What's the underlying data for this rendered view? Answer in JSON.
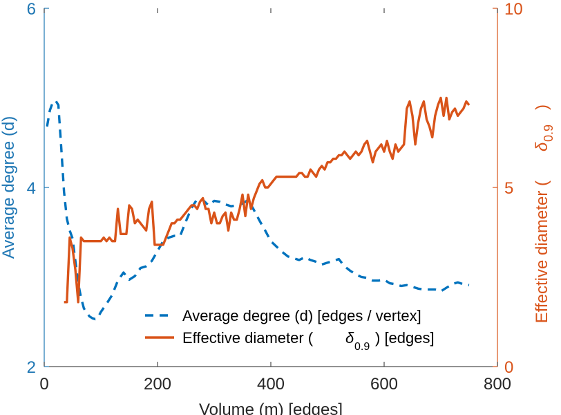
{
  "chart_data": {
    "type": "line",
    "xlabel": "Volume (m) [edges]",
    "x_ticks": [
      0,
      200,
      400,
      600,
      800
    ],
    "xlim": [
      0,
      800
    ],
    "y_left": {
      "label": "Average degree (d)",
      "ticks": [
        2,
        4,
        6
      ],
      "ylim": [
        2,
        6
      ],
      "color": "#1f77b4"
    },
    "y_right": {
      "label_prefix": "Effective diameter (",
      "label_symbol": "δ",
      "label_subscript": "0.9",
      "label_suffix": ")",
      "ticks": [
        0,
        5,
        10
      ],
      "ylim": [
        0,
        10
      ],
      "color": "#d95319"
    },
    "grid": false,
    "legend": {
      "placement": "lower-right",
      "entries": [
        {
          "series": 0,
          "text": "Average degree (d) [edges / vertex]"
        },
        {
          "series": 1,
          "text_prefix": "Effective diameter (",
          "symbol": "δ",
          "subscript": "0.9",
          "text_suffix": ") [edges]"
        }
      ]
    },
    "series": [
      {
        "axis": "left",
        "style": "dashed",
        "color": "#0072bd",
        "x": [
          5,
          10,
          15,
          20,
          25,
          30,
          35,
          40,
          45,
          50,
          55,
          60,
          65,
          70,
          75,
          80,
          85,
          90,
          95,
          100,
          110,
          120,
          130,
          140,
          150,
          160,
          170,
          180,
          190,
          200,
          210,
          220,
          230,
          240,
          250,
          260,
          270,
          280,
          290,
          300,
          310,
          320,
          330,
          340,
          350,
          360,
          370,
          380,
          390,
          400,
          410,
          420,
          430,
          440,
          450,
          460,
          470,
          480,
          490,
          500,
          510,
          520,
          530,
          540,
          550,
          560,
          570,
          580,
          590,
          600,
          610,
          620,
          630,
          640,
          650,
          660,
          670,
          680,
          690,
          700,
          710,
          720,
          730,
          740,
          750
        ],
        "values": [
          4.68,
          4.86,
          4.95,
          4.97,
          4.92,
          4.45,
          3.95,
          3.65,
          3.52,
          3.43,
          3.18,
          2.93,
          2.77,
          2.65,
          2.6,
          2.56,
          2.54,
          2.53,
          2.55,
          2.61,
          2.7,
          2.8,
          2.96,
          3.05,
          2.97,
          3.01,
          3.1,
          3.12,
          3.18,
          3.29,
          3.4,
          3.44,
          3.46,
          3.46,
          3.62,
          3.77,
          3.87,
          3.86,
          3.8,
          3.85,
          3.84,
          3.81,
          3.79,
          3.8,
          3.82,
          3.86,
          3.75,
          3.63,
          3.52,
          3.4,
          3.34,
          3.28,
          3.23,
          3.21,
          3.19,
          3.22,
          3.19,
          3.17,
          3.14,
          3.16,
          3.18,
          3.2,
          3.12,
          3.07,
          3.03,
          3.0,
          2.99,
          2.96,
          2.96,
          2.97,
          2.93,
          2.92,
          2.9,
          2.91,
          2.89,
          2.87,
          2.86,
          2.86,
          2.86,
          2.84,
          2.88,
          2.92,
          2.94,
          2.92,
          2.91
        ]
      },
      {
        "axis": "right",
        "style": "solid",
        "color": "#d95319",
        "x": [
          35,
          40,
          45,
          50,
          55,
          60,
          65,
          70,
          75,
          80,
          85,
          90,
          95,
          100,
          105,
          110,
          115,
          120,
          125,
          130,
          135,
          140,
          145,
          150,
          155,
          160,
          165,
          170,
          175,
          180,
          185,
          190,
          195,
          200,
          205,
          210,
          215,
          220,
          225,
          230,
          235,
          240,
          245,
          250,
          255,
          260,
          265,
          270,
          275,
          280,
          285,
          290,
          295,
          300,
          305,
          310,
          315,
          320,
          325,
          330,
          335,
          340,
          345,
          350,
          355,
          360,
          365,
          370,
          375,
          380,
          385,
          390,
          395,
          400,
          405,
          410,
          415,
          420,
          425,
          430,
          435,
          440,
          445,
          450,
          455,
          460,
          465,
          470,
          475,
          480,
          485,
          490,
          495,
          500,
          505,
          510,
          515,
          520,
          525,
          530,
          535,
          540,
          545,
          550,
          555,
          560,
          565,
          570,
          575,
          580,
          585,
          590,
          595,
          600,
          605,
          610,
          615,
          620,
          625,
          630,
          635,
          640,
          645,
          650,
          655,
          660,
          665,
          670,
          675,
          680,
          685,
          690,
          695,
          700,
          705,
          710,
          715,
          720,
          725,
          730,
          735,
          740,
          745,
          750
        ],
        "values": [
          1.8,
          1.8,
          3.6,
          3.3,
          2.7,
          1.8,
          3.6,
          3.5,
          3.5,
          3.5,
          3.5,
          3.5,
          3.5,
          3.5,
          3.6,
          3.5,
          3.6,
          3.5,
          3.5,
          4.4,
          3.7,
          3.7,
          3.7,
          4.5,
          4.4,
          4.0,
          4.1,
          4.0,
          3.9,
          3.8,
          4.4,
          4.6,
          3.4,
          3.4,
          3.4,
          3.4,
          3.6,
          3.8,
          4.0,
          4.0,
          4.1,
          4.1,
          4.2,
          4.3,
          4.4,
          4.5,
          4.5,
          4.4,
          4.6,
          4.7,
          4.4,
          4.4,
          4.0,
          4.3,
          4.0,
          4.0,
          4.2,
          4.3,
          3.8,
          4.3,
          4.1,
          4.1,
          4.4,
          4.8,
          4.2,
          4.8,
          4.4,
          4.7,
          4.9,
          5.1,
          5.2,
          5.0,
          5.0,
          5.1,
          5.2,
          5.3,
          5.3,
          5.3,
          5.3,
          5.3,
          5.3,
          5.3,
          5.3,
          5.4,
          5.4,
          5.3,
          5.3,
          5.5,
          5.4,
          5.3,
          5.5,
          5.6,
          5.5,
          5.7,
          5.7,
          5.8,
          5.8,
          5.9,
          5.9,
          6.0,
          5.9,
          5.8,
          5.9,
          6.0,
          5.9,
          6.0,
          6.2,
          6.3,
          6.0,
          5.7,
          6.0,
          6.1,
          6.2,
          6.0,
          6.3,
          6.0,
          5.8,
          6.2,
          6.0,
          6.1,
          6.2,
          7.2,
          7.4,
          7.0,
          6.2,
          6.8,
          7.2,
          7.4,
          6.9,
          6.7,
          6.4,
          7.0,
          7.3,
          7.5,
          7.0,
          7.5,
          6.9,
          7.1,
          7.2,
          7.0,
          7.1,
          7.2,
          7.4,
          7.3
        ]
      }
    ]
  }
}
